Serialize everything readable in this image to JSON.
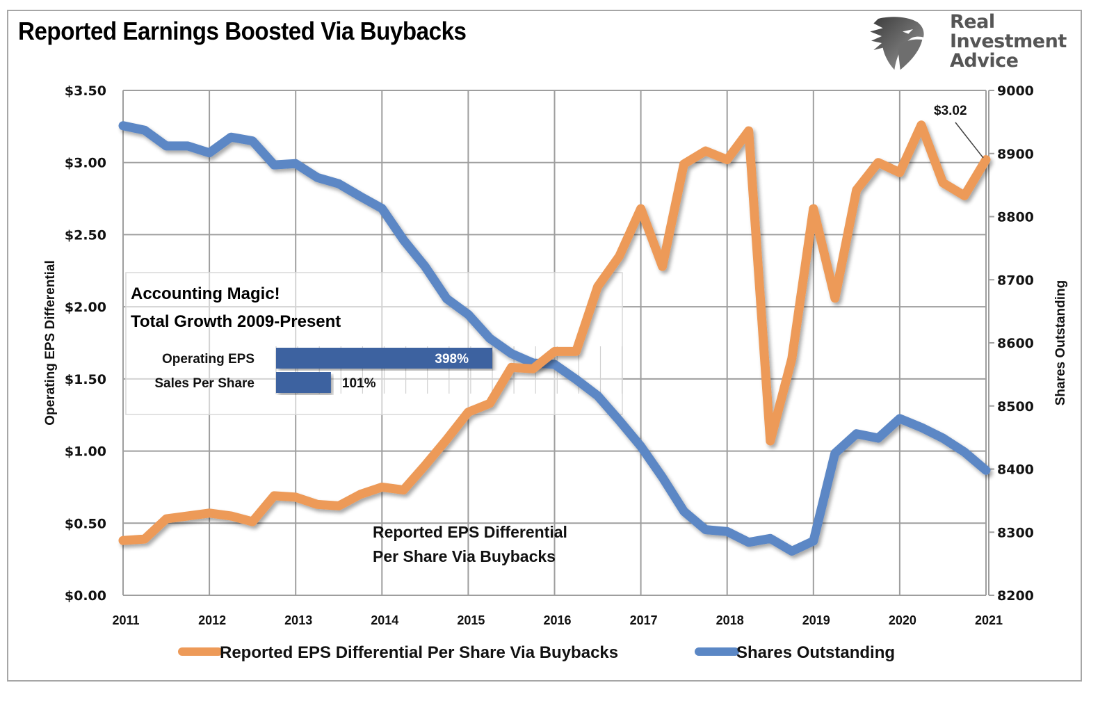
{
  "brand": {
    "name_lines": [
      "Real",
      "Investment",
      "Advice"
    ],
    "logo_icon": "eagle-head-icon"
  },
  "chart_data": {
    "type": "line",
    "title": "Reported Earnings Boosted Via Buybacks",
    "xlabel": "",
    "ylabel_left": "Operating EPS Differential",
    "ylabel_right": "Shares Outstanding",
    "x_ticks": [
      "2011",
      "2012",
      "2013",
      "2014",
      "2015",
      "2016",
      "2017",
      "2018",
      "2019",
      "2020",
      "2021"
    ],
    "xlim": [
      2011,
      2021
    ],
    "ylim_left": [
      0,
      3.5
    ],
    "ylim_right": [
      8200,
      9000
    ],
    "y_ticks_left": [
      "$0.00",
      "$0.50",
      "$1.00",
      "$1.50",
      "$2.00",
      "$2.50",
      "$3.00",
      "$3.50"
    ],
    "y_ticks_right": [
      "8200",
      "8300",
      "8400",
      "8500",
      "8600",
      "8700",
      "8800",
      "8900",
      "9000"
    ],
    "grid": true,
    "legend_position": "bottom",
    "colors": {
      "eps": "#ed9a58",
      "shares": "#5b87c5",
      "bar": "#3e62a0"
    },
    "x": [
      2011.0,
      2011.25,
      2011.5,
      2011.75,
      2012.0,
      2012.25,
      2012.5,
      2012.75,
      2013.0,
      2013.25,
      2013.5,
      2013.75,
      2014.0,
      2014.25,
      2014.5,
      2014.75,
      2015.0,
      2015.25,
      2015.5,
      2015.75,
      2016.0,
      2016.25,
      2016.5,
      2016.75,
      2017.0,
      2017.25,
      2017.5,
      2017.75,
      2018.0,
      2018.25,
      2018.5,
      2018.75,
      2019.0,
      2019.25,
      2019.5,
      2019.75,
      2020.0,
      2020.25,
      2020.5,
      2020.75,
      2021.0
    ],
    "series": [
      {
        "name": "Reported EPS Differential Per Share Via Buybacks",
        "axis": "left",
        "values": [
          0.38,
          0.39,
          0.53,
          0.55,
          0.57,
          0.55,
          0.51,
          0.69,
          0.68,
          0.63,
          0.62,
          0.7,
          0.75,
          0.73,
          0.9,
          1.08,
          1.27,
          1.33,
          1.58,
          1.57,
          1.69,
          1.69,
          2.14,
          2.35,
          2.68,
          2.28,
          2.99,
          3.08,
          3.02,
          3.22,
          1.07,
          1.64,
          2.68,
          2.06,
          2.81,
          3.0,
          2.93,
          3.26,
          2.86,
          2.77,
          3.02
        ]
      },
      {
        "name": "Shares Outstanding",
        "axis": "right",
        "values": [
          8944,
          8937,
          8912,
          8912,
          8901,
          8926,
          8920,
          8882,
          8884,
          8862,
          8852,
          8832,
          8813,
          8763,
          8721,
          8670,
          8645,
          8607,
          8583,
          8568,
          8566,
          8542,
          8516,
          8477,
          8436,
          8387,
          8333,
          8304,
          8301,
          8284,
          8290,
          8270,
          8286,
          8425,
          8456,
          8449,
          8480,
          8466,
          8449,
          8427,
          8398
        ]
      }
    ],
    "last_value_label": "$3.02",
    "annotations": {
      "series_label_lines": [
        "Reported EPS Differential",
        "Per Share Via Buybacks"
      ]
    },
    "inset": {
      "title_lines": [
        "Accounting Magic!",
        "Total Growth 2009-Present"
      ],
      "type": "bar",
      "categories": [
        "Operating EPS",
        "Sales Per Share"
      ],
      "values": [
        398,
        101
      ],
      "value_labels": [
        "398%",
        "101%"
      ],
      "unit": "%"
    }
  }
}
